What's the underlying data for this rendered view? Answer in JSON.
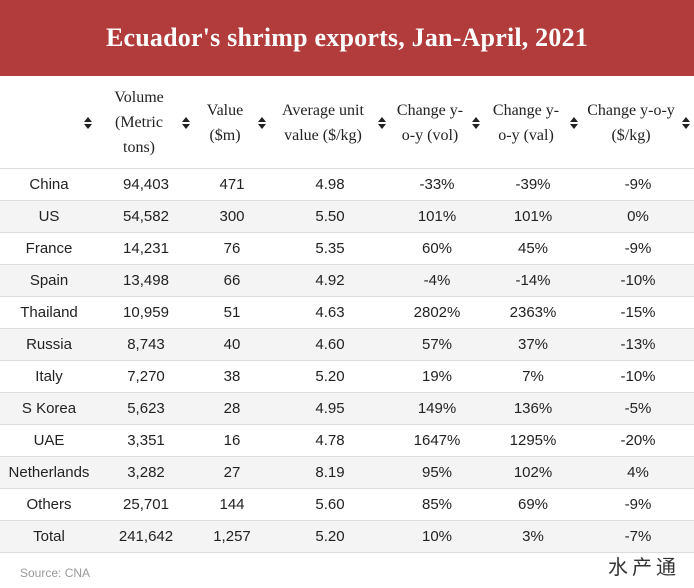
{
  "title": "Ecuador's shrimp exports, Jan-April, 2021",
  "chart_data": {
    "type": "table",
    "title": "Ecuador's shrimp exports, Jan-April, 2021",
    "columns": [
      "",
      "Volume (Metric tons)",
      "Value ($m)",
      "Average unit value ($/kg)",
      "Change y-o-y (vol)",
      "Change y-o-y (val)",
      "Change y-o-y ($/kg)"
    ],
    "rows": [
      [
        "China",
        "94,403",
        "471",
        "4.98",
        "-33%",
        "-39%",
        "-9%"
      ],
      [
        "US",
        "54,582",
        "300",
        "5.50",
        "101%",
        "101%",
        "0%"
      ],
      [
        "France",
        "14,231",
        "76",
        "5.35",
        "60%",
        "45%",
        "-9%"
      ],
      [
        "Spain",
        "13,498",
        "66",
        "4.92",
        "-4%",
        "-14%",
        "-10%"
      ],
      [
        "Thailand",
        "10,959",
        "51",
        "4.63",
        "2802%",
        "2363%",
        "-15%"
      ],
      [
        "Russia",
        "8,743",
        "40",
        "4.60",
        "57%",
        "37%",
        "-13%"
      ],
      [
        "Italy",
        "7,270",
        "38",
        "5.20",
        "19%",
        "7%",
        "-10%"
      ],
      [
        "S Korea",
        "5,623",
        "28",
        "4.95",
        "149%",
        "136%",
        "-5%"
      ],
      [
        "UAE",
        "3,351",
        "16",
        "4.78",
        "1647%",
        "1295%",
        "-20%"
      ],
      [
        "Netherlands",
        "3,282",
        "27",
        "8.19",
        "95%",
        "102%",
        "4%"
      ],
      [
        "Others",
        "25,701",
        "144",
        "5.60",
        "85%",
        "69%",
        "-9%"
      ],
      [
        "Total",
        "241,642",
        "1,257",
        "5.20",
        "10%",
        "3%",
        "-7%"
      ]
    ]
  },
  "source": "Source: CNA",
  "watermark": "水产通",
  "colors": {
    "banner": "#b23b3b",
    "row_alt": "#f4f4f4",
    "divider": "#dddddd"
  },
  "icons": {
    "sort": "sort-arrows-icon"
  }
}
